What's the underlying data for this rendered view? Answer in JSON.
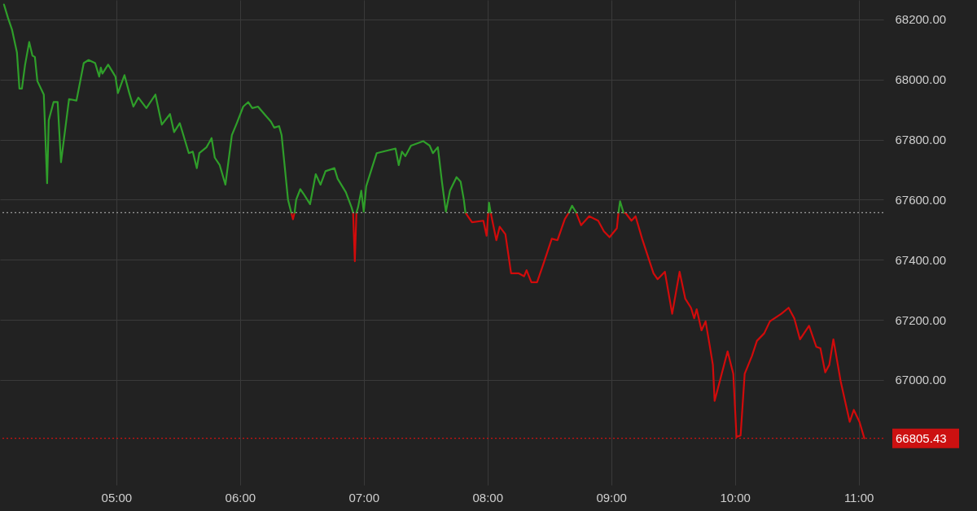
{
  "chart_data": {
    "type": "line",
    "x": [
      4.092,
      4.125,
      4.158,
      4.197,
      4.217,
      4.237,
      4.263,
      4.296,
      4.322,
      4.342,
      4.362,
      4.414,
      4.441,
      4.454,
      4.493,
      4.526,
      4.553,
      4.618,
      4.678,
      4.737,
      4.776,
      4.829,
      4.862,
      4.875,
      4.888,
      4.934,
      4.993,
      5.013,
      5.066,
      5.105,
      5.138,
      5.178,
      5.243,
      5.316,
      5.368,
      5.434,
      5.467,
      5.513,
      5.586,
      5.618,
      5.651,
      5.671,
      5.73,
      5.77,
      5.796,
      5.836,
      5.882,
      5.934,
      5.974,
      6.026,
      6.066,
      6.099,
      6.145,
      6.197,
      6.25,
      6.276,
      6.316,
      6.336,
      6.388,
      6.414,
      6.428,
      6.441,
      6.454,
      6.487,
      6.513,
      6.566,
      6.612,
      6.651,
      6.691,
      6.763,
      6.789,
      6.855,
      6.901,
      6.914,
      6.928,
      6.941,
      6.954,
      6.98,
      7.0,
      7.02,
      7.066,
      7.105,
      7.204,
      7.257,
      7.283,
      7.309,
      7.336,
      7.382,
      7.48,
      7.533,
      7.559,
      7.599,
      7.632,
      7.664,
      7.697,
      7.75,
      7.783,
      7.809,
      7.822,
      7.875,
      7.967,
      7.993,
      8.007,
      8.013,
      8.026,
      8.072,
      8.099,
      8.145,
      8.191,
      8.25,
      8.296,
      8.316,
      8.355,
      8.401,
      8.447,
      8.52,
      8.566,
      8.625,
      8.658,
      8.684,
      8.717,
      8.757,
      8.822,
      8.895,
      8.941,
      8.987,
      9.046,
      9.059,
      9.072,
      9.099,
      9.118,
      9.164,
      9.197,
      9.25,
      9.342,
      9.375,
      9.434,
      9.493,
      9.553,
      9.599,
      9.645,
      9.671,
      9.691,
      9.73,
      9.763,
      9.796,
      9.822,
      9.836,
      9.941,
      9.987,
      10.013,
      10.046,
      10.079,
      10.138,
      10.178,
      10.237,
      10.283,
      10.375,
      10.434,
      10.48,
      10.526,
      10.599,
      10.658,
      10.691,
      10.73,
      10.763,
      10.796,
      10.855,
      10.928,
      10.961,
      11.007,
      11.046
    ],
    "xlim": [
      4.06,
      11.2
    ],
    "xticks": [
      {
        "value": 5,
        "label": "05:00"
      },
      {
        "value": 6,
        "label": "06:00"
      },
      {
        "value": 7,
        "label": "07:00"
      },
      {
        "value": 8,
        "label": "08:00"
      },
      {
        "value": 9,
        "label": "09:00"
      },
      {
        "value": 10,
        "label": "10:00"
      },
      {
        "value": 11,
        "label": "11:00"
      }
    ],
    "ylim": [
      66650,
      68265
    ],
    "yticks": [
      {
        "value": 67000,
        "label": "67000.00"
      },
      {
        "value": 67200,
        "label": "67200.00"
      },
      {
        "value": 67400,
        "label": "67400.00"
      },
      {
        "value": 67600,
        "label": "67600.00"
      },
      {
        "value": 67800,
        "label": "67800.00"
      },
      {
        "value": 68000,
        "label": "68000.00"
      },
      {
        "value": 68200,
        "label": "68200.00"
      }
    ],
    "grid": true,
    "ref_lines": [
      {
        "axis": "y",
        "value": 67557,
        "color": "#9a9a9a",
        "line_style": "dotted"
      },
      {
        "axis": "y",
        "value": 66805.43,
        "label": "66805.43",
        "color": "#cc1111",
        "line_style": "dotted"
      }
    ],
    "series": [
      {
        "color": "#2f9e2a",
        "values": [
          68250,
          68205,
          68165,
          68090,
          67970,
          67970,
          68050,
          68125,
          68080,
          68075,
          67995,
          67950,
          67655,
          67865,
          67925,
          67925,
          67725,
          67935,
          67930,
          68055,
          68065,
          68055,
          68010,
          68040,
          68020,
          68050,
          68010,
          67955,
          68015,
          67955,
          67910,
          67940,
          67905,
          67950,
          67850,
          67885,
          67825,
          67855,
          67755,
          67760,
          67705,
          67755,
          67775,
          67805,
          67740,
          67715,
          67650,
          67815,
          67855,
          67910,
          67925,
          67905,
          67910,
          67885,
          67860,
          67840,
          67845,
          67815,
          67600,
          67557,
          null,
          67557,
          67600,
          67635,
          67620,
          67585,
          67685,
          67650,
          67695,
          67705,
          67670,
          67625,
          67575,
          67557,
          null,
          67557,
          67575,
          67630,
          67560,
          67645,
          67705,
          67755,
          67765,
          67770,
          67715,
          67760,
          67745,
          67780,
          67795,
          67780,
          67755,
          67775,
          67660,
          67560,
          67630,
          67675,
          67660,
          67600,
          67557,
          null,
          null,
          null,
          67557,
          67590,
          67557,
          null,
          null,
          null,
          null,
          null,
          null,
          null,
          null,
          null,
          null,
          null,
          null,
          null,
          67557,
          67580,
          67557,
          null,
          null,
          null,
          null,
          null,
          null,
          67557,
          67595,
          67557,
          null,
          null,
          null,
          null,
          null,
          null,
          null,
          null,
          null,
          null,
          null,
          null,
          null,
          null,
          null,
          null,
          null,
          null,
          null,
          null,
          null,
          null,
          null,
          null,
          null,
          null,
          null,
          null,
          null,
          null,
          null,
          null,
          null,
          null,
          null,
          null,
          null,
          null,
          null,
          null,
          null,
          null
        ]
      },
      {
        "color": "#d10b0b",
        "values": [
          null,
          null,
          null,
          null,
          null,
          null,
          null,
          null,
          null,
          null,
          null,
          null,
          null,
          null,
          null,
          null,
          null,
          null,
          null,
          null,
          null,
          null,
          null,
          null,
          null,
          null,
          null,
          null,
          null,
          null,
          null,
          null,
          null,
          null,
          null,
          null,
          null,
          null,
          null,
          null,
          null,
          null,
          null,
          null,
          null,
          null,
          null,
          null,
          null,
          null,
          null,
          null,
          null,
          null,
          null,
          null,
          null,
          null,
          null,
          67557,
          67535,
          67557,
          null,
          null,
          null,
          null,
          null,
          null,
          null,
          null,
          null,
          null,
          null,
          67557,
          67395,
          67557,
          null,
          null,
          null,
          null,
          null,
          null,
          null,
          null,
          null,
          null,
          null,
          null,
          null,
          null,
          null,
          null,
          null,
          null,
          null,
          null,
          null,
          null,
          67557,
          67525,
          67530,
          67480,
          67557,
          null,
          67557,
          67465,
          67510,
          67485,
          67355,
          67355,
          67345,
          67365,
          67325,
          67325,
          67380,
          67470,
          67465,
          67535,
          67557,
          null,
          67557,
          67515,
          67545,
          67530,
          67495,
          67475,
          67505,
          67557,
          null,
          67557,
          67555,
          67530,
          67545,
          67470,
          67355,
          67335,
          67360,
          67220,
          67360,
          67270,
          67240,
          67205,
          67235,
          67165,
          67195,
          67115,
          67050,
          66930,
          67095,
          67020,
          66810,
          66815,
          67020,
          67080,
          67130,
          67155,
          67195,
          67220,
          67240,
          67205,
          67135,
          67180,
          67110,
          67105,
          67025,
          67050,
          67135,
          66995,
          66860,
          66900,
          66860,
          66805.43
        ]
      }
    ]
  }
}
